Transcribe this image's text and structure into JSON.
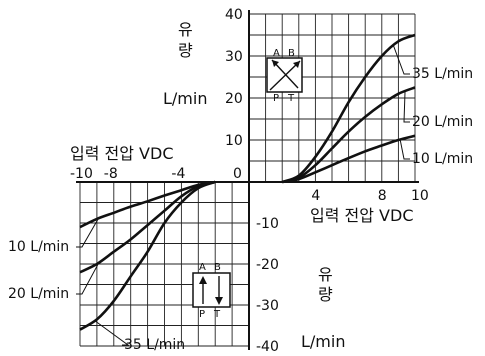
{
  "chart_data": {
    "type": "line",
    "x_axis": {
      "label": "입력 전압 VDC",
      "label_left": "입력 전압 VDC",
      "range": [
        -10,
        10
      ],
      "tick_labels_positive": [
        "4",
        "8",
        "10"
      ],
      "tick_labels_negative": [
        "-10",
        "-8",
        "-4"
      ],
      "origin_label": "0"
    },
    "y_axis": {
      "title_chars": [
        "유",
        "량"
      ],
      "unit": "L/min",
      "range": [
        -40,
        40
      ],
      "tick_labels_positive": [
        "40",
        "30",
        "20",
        "10"
      ],
      "tick_labels_negative": [
        "-10",
        "-20",
        "-30",
        "-40"
      ]
    },
    "grid": true,
    "series": [
      {
        "name": "35 L/min",
        "quadrant1": [
          [
            2,
            0
          ],
          [
            3,
            1.5
          ],
          [
            4,
            6
          ],
          [
            5,
            12
          ],
          [
            6,
            19
          ],
          [
            7,
            25
          ],
          [
            8,
            30
          ],
          [
            9,
            33.5
          ],
          [
            10,
            35
          ]
        ],
        "quadrant3": [
          [
            -2,
            0
          ],
          [
            -3,
            -1.5
          ],
          [
            -4,
            -5
          ],
          [
            -5,
            -10
          ],
          [
            -6,
            -17
          ],
          [
            -7,
            -23
          ],
          [
            -8,
            -29
          ],
          [
            -9,
            -33.5
          ],
          [
            -10,
            -36
          ]
        ]
      },
      {
        "name": "20 L/min",
        "quadrant1": [
          [
            2,
            0
          ],
          [
            3,
            1
          ],
          [
            4,
            4
          ],
          [
            5,
            8
          ],
          [
            6,
            12
          ],
          [
            7,
            15.5
          ],
          [
            8,
            18.5
          ],
          [
            9,
            21
          ],
          [
            10,
            22.5
          ]
        ],
        "quadrant3": [
          [
            -2,
            0
          ],
          [
            -3,
            -1
          ],
          [
            -4,
            -3.5
          ],
          [
            -5,
            -7
          ],
          [
            -6,
            -10.5
          ],
          [
            -7,
            -14
          ],
          [
            -8,
            -17
          ],
          [
            -9,
            -20
          ],
          [
            -10,
            -22
          ]
        ]
      },
      {
        "name": "10 L/min",
        "quadrant1": [
          [
            2,
            0
          ],
          [
            3,
            0.7
          ],
          [
            4,
            2.3
          ],
          [
            5,
            4
          ],
          [
            6,
            5.7
          ],
          [
            7,
            7.3
          ],
          [
            8,
            8.7
          ],
          [
            9,
            10
          ],
          [
            10,
            11
          ]
        ],
        "quadrant3": [
          [
            -2,
            0
          ],
          [
            -3,
            -0.7
          ],
          [
            -4,
            -2
          ],
          [
            -5,
            -3.3
          ],
          [
            -6,
            -4.7
          ],
          [
            -7,
            -6
          ],
          [
            -8,
            -7.5
          ],
          [
            -9,
            -9
          ],
          [
            -10,
            -11
          ]
        ]
      }
    ],
    "valve_symbol_upper": {
      "top_labels": [
        "A",
        "B"
      ],
      "bottom_labels": [
        "P",
        "T"
      ]
    },
    "valve_symbol_lower": {
      "top_labels": [
        "A",
        "B"
      ],
      "bottom_labels": [
        "P",
        "T"
      ]
    }
  }
}
